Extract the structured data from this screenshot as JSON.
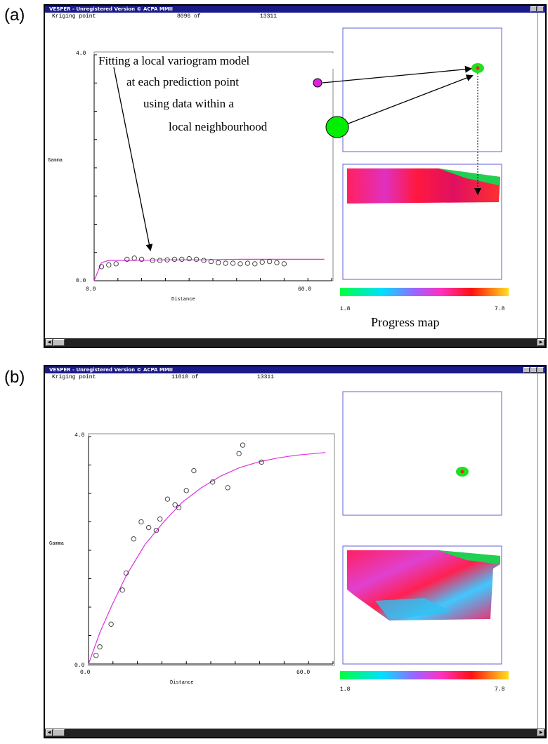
{
  "panels": [
    {
      "label": "(a)",
      "window_title": "VESPER - Unregistered Version © ACPA MMII",
      "status": {
        "label": "Kriging point",
        "current": "8096 of",
        "total": "13311"
      },
      "chart": {
        "y_max_label": "4.0",
        "y_min_label": "0.0",
        "x_min_label": "0.0",
        "x_max_label": "60.0",
        "ylabel": "Gamma",
        "xlabel": "Distance"
      },
      "colorbar": {
        "min_label": "1.8",
        "max_label": "7.8"
      },
      "annotations": {
        "line1": "Fitting a local variogram model",
        "line2": "at each prediction point",
        "line3": "using data within a",
        "line4": "local neighbourhood",
        "progress_map": "Progress map"
      }
    },
    {
      "label": "(b)",
      "window_title": "VESPER - Unregistered Version © ACPA MMII",
      "status": {
        "label": "Kriging point",
        "current": "11010 of",
        "total": "13311"
      },
      "chart": {
        "y_max_label": "4.0",
        "y_min_label": "0.0",
        "x_min_label": "0.0",
        "x_max_label": "60.0",
        "ylabel": "Gamma",
        "xlabel": "Distance"
      },
      "colorbar": {
        "min_label": "1.8",
        "max_label": "7.8"
      }
    }
  ],
  "chart_data": [
    {
      "type": "scatter",
      "xlabel": "Distance",
      "ylabel": "Gamma",
      "xlim": [
        0,
        65
      ],
      "ylim": [
        0,
        4.0
      ],
      "points": [
        [
          2,
          0.25
        ],
        [
          4,
          0.28
        ],
        [
          6,
          0.3
        ],
        [
          9,
          0.38
        ],
        [
          11,
          0.4
        ],
        [
          13,
          0.38
        ],
        [
          16,
          0.36
        ],
        [
          18,
          0.36
        ],
        [
          20,
          0.37
        ],
        [
          22,
          0.38
        ],
        [
          24,
          0.38
        ],
        [
          26,
          0.39
        ],
        [
          28,
          0.38
        ],
        [
          30,
          0.36
        ],
        [
          32,
          0.34
        ],
        [
          34,
          0.32
        ],
        [
          36,
          0.31
        ],
        [
          38,
          0.31
        ],
        [
          40,
          0.3
        ],
        [
          42,
          0.31
        ],
        [
          44,
          0.3
        ],
        [
          46,
          0.33
        ],
        [
          48,
          0.34
        ],
        [
          50,
          0.32
        ],
        [
          52,
          0.3
        ]
      ],
      "model_curve": [
        [
          0,
          0.0
        ],
        [
          2,
          0.32
        ],
        [
          4,
          0.36
        ],
        [
          10,
          0.36
        ],
        [
          20,
          0.37
        ],
        [
          30,
          0.37
        ],
        [
          40,
          0.38
        ],
        [
          50,
          0.38
        ],
        [
          63,
          0.38
        ]
      ],
      "series_color": "#e030e0"
    },
    {
      "type": "scatter",
      "xlabel": "Distance",
      "ylabel": "Gamma",
      "xlim": [
        0,
        65
      ],
      "ylim": [
        0,
        4.0
      ],
      "points": [
        [
          2,
          0.15
        ],
        [
          3,
          0.3
        ],
        [
          6,
          0.7
        ],
        [
          9,
          1.3
        ],
        [
          10,
          1.6
        ],
        [
          12,
          2.2
        ],
        [
          14,
          2.5
        ],
        [
          16,
          2.4
        ],
        [
          18,
          2.35
        ],
        [
          19,
          2.55
        ],
        [
          21,
          2.9
        ],
        [
          23,
          2.8
        ],
        [
          24,
          2.75
        ],
        [
          26,
          3.05
        ],
        [
          28,
          3.4
        ],
        [
          33,
          3.2
        ],
        [
          37,
          3.1
        ],
        [
          40,
          3.7
        ],
        [
          41,
          3.85
        ],
        [
          46,
          3.55
        ]
      ],
      "model_curve": [
        [
          0,
          0.0
        ],
        [
          3,
          0.55
        ],
        [
          6,
          1.0
        ],
        [
          10,
          1.55
        ],
        [
          15,
          2.1
        ],
        [
          20,
          2.5
        ],
        [
          25,
          2.85
        ],
        [
          30,
          3.1
        ],
        [
          35,
          3.3
        ],
        [
          40,
          3.45
        ],
        [
          45,
          3.55
        ],
        [
          50,
          3.62
        ],
        [
          55,
          3.67
        ],
        [
          63,
          3.72
        ]
      ],
      "series_color": "#e030e0"
    }
  ],
  "colors": {
    "title_bar": "#1a1a8a",
    "frame_blue": "#6060d8",
    "curve": "#e030e0",
    "callout_pink": "#e020e0",
    "callout_green": "#00ee00"
  }
}
